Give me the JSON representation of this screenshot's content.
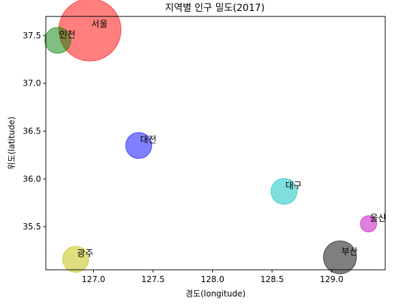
{
  "chart_data": {
    "type": "scatter",
    "title": "지역별 인구 밀도(2017)",
    "xlabel": "경도(longitude)",
    "ylabel": "위도(latitude)",
    "xlim": [
      126.6,
      129.45
    ],
    "ylim": [
      35.05,
      37.7
    ],
    "xticks": [
      "127.0",
      "127.5",
      "128.0",
      "128.5",
      "129.0"
    ],
    "yticks": [
      "35.5",
      "36.0",
      "36.5",
      "37.0",
      "37.5"
    ],
    "grid": false,
    "points": [
      {
        "name": "서울",
        "x": 126.97,
        "y": 37.56,
        "size": 16000,
        "color": "#ff0000"
      },
      {
        "name": "인천",
        "x": 126.7,
        "y": 37.45,
        "size": 2800,
        "color": "#008000"
      },
      {
        "name": "대전",
        "x": 127.38,
        "y": 36.35,
        "size": 2800,
        "color": "#0000ff"
      },
      {
        "name": "대구",
        "x": 128.6,
        "y": 35.87,
        "size": 2800,
        "color": "#00bfbf"
      },
      {
        "name": "울산",
        "x": 129.31,
        "y": 35.53,
        "size": 1100,
        "color": "#bf00bf"
      },
      {
        "name": "부산",
        "x": 129.07,
        "y": 35.18,
        "size": 4500,
        "color": "#000000"
      },
      {
        "name": "광주",
        "x": 126.85,
        "y": 35.16,
        "size": 2800,
        "color": "#bfbf00"
      }
    ]
  }
}
